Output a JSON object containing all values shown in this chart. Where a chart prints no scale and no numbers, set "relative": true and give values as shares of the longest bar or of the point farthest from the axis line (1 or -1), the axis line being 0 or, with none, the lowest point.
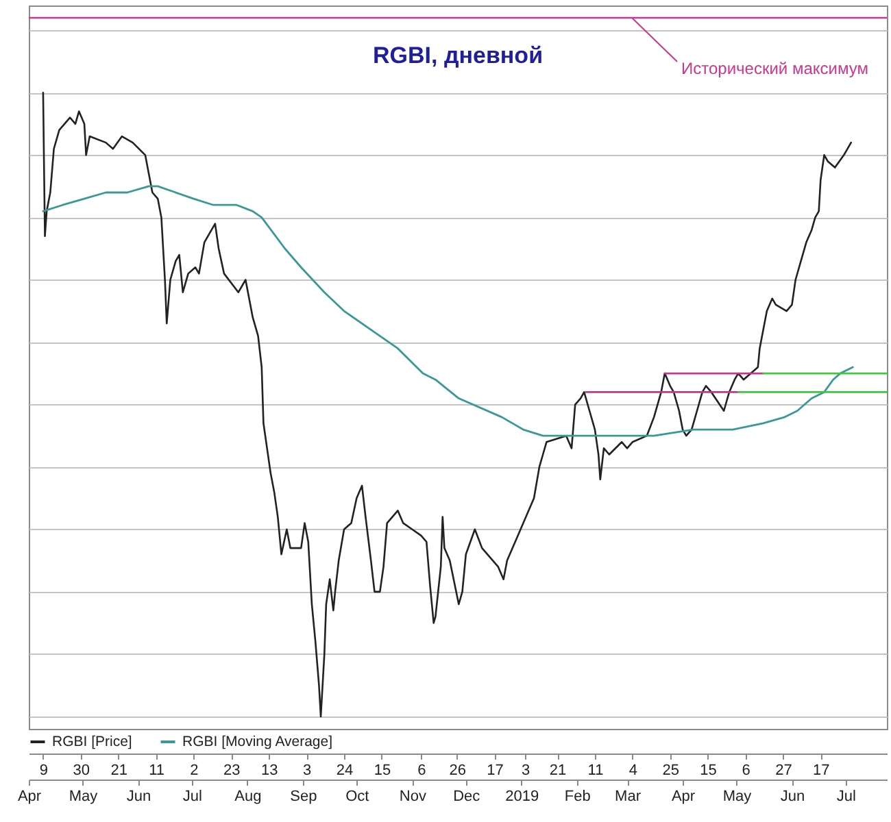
{
  "chart_data": {
    "type": "line",
    "title": "RGBI, дневной",
    "relative": true,
    "xlim": [
      "2018-04-01",
      "2019-07-24"
    ],
    "xticks": [
      {
        "value": "2018-04-09",
        "label": "9"
      },
      {
        "value": "2018-04-30",
        "label": "30"
      },
      {
        "value": "2018-05-21",
        "label": "21"
      },
      {
        "value": "2018-06-11",
        "label": "11"
      },
      {
        "value": "2018-07-02",
        "label": "2"
      },
      {
        "value": "2018-07-23",
        "label": "23"
      },
      {
        "value": "2018-08-13",
        "label": "13"
      },
      {
        "value": "2018-09-03",
        "label": "3"
      },
      {
        "value": "2018-09-24",
        "label": "24"
      },
      {
        "value": "2018-10-15",
        "label": "15"
      },
      {
        "value": "2018-11-06",
        "label": "6"
      },
      {
        "value": "2018-11-26",
        "label": "26"
      },
      {
        "value": "2018-12-17",
        "label": "17"
      },
      {
        "value": "2019-01-03",
        "label": "3"
      },
      {
        "value": "2019-01-21",
        "label": "21"
      },
      {
        "value": "2019-02-11",
        "label": "11"
      },
      {
        "value": "2019-03-04",
        "label": "4"
      },
      {
        "value": "2019-03-25",
        "label": "25"
      },
      {
        "value": "2019-04-15",
        "label": "15"
      },
      {
        "value": "2019-05-06",
        "label": "6"
      },
      {
        "value": "2019-05-27",
        "label": "27"
      },
      {
        "value": "2019-06-17",
        "label": "17"
      }
    ],
    "x2lim": [
      "2018-04-01",
      "2019-07-24"
    ],
    "x2ticks": [
      {
        "value": "2018-04-01",
        "label": "Apr"
      },
      {
        "value": "2018-05-01",
        "label": "May"
      },
      {
        "value": "2018-06-01",
        "label": "Jun"
      },
      {
        "value": "2018-07-01",
        "label": "Jul"
      },
      {
        "value": "2018-08-01",
        "label": "Aug"
      },
      {
        "value": "2018-09-01",
        "label": "Sep"
      },
      {
        "value": "2018-10-01",
        "label": "Oct"
      },
      {
        "value": "2018-11-01",
        "label": "Nov"
      },
      {
        "value": "2018-12-01",
        "label": "Dec"
      },
      {
        "value": "2019-01-01",
        "label": "2019"
      },
      {
        "value": "2019-02-01",
        "label": "Feb"
      },
      {
        "value": "2019-03-01",
        "label": "Mar"
      },
      {
        "value": "2019-04-01",
        "label": "Apr"
      },
      {
        "value": "2019-05-01",
        "label": "May"
      },
      {
        "value": "2019-06-01",
        "label": "Jun"
      },
      {
        "value": "2019-07-01",
        "label": "Jul"
      }
    ],
    "grid": "y",
    "legend": "bottom left",
    "ref_lines": [
      {
        "axis": "y",
        "value": 1.12,
        "label": "Исторический максимум",
        "color": "#c8388c"
      }
    ],
    "series": [
      {
        "name": "RGBI [Price]",
        "color": "#222222",
        "x": [
          "2018-04-09",
          "2018-04-10",
          "2018-04-11",
          "2018-04-13",
          "2018-04-15",
          "2018-04-18",
          "2018-04-24",
          "2018-04-27",
          "2018-04-29",
          "2018-05-02",
          "2018-05-03",
          "2018-05-05",
          "2018-05-14",
          "2018-05-18",
          "2018-05-23",
          "2018-05-29",
          "2018-06-05",
          "2018-06-07",
          "2018-06-09",
          "2018-06-12",
          "2018-06-14",
          "2018-06-16",
          "2018-06-17",
          "2018-06-19",
          "2018-06-22",
          "2018-06-24",
          "2018-06-26",
          "2018-06-29",
          "2018-07-03",
          "2018-07-05",
          "2018-07-08",
          "2018-07-12",
          "2018-07-14",
          "2018-07-16",
          "2018-07-19",
          "2018-07-27",
          "2018-07-31",
          "2018-08-02",
          "2018-08-04",
          "2018-08-07",
          "2018-08-09",
          "2018-08-10",
          "2018-08-12",
          "2018-08-14",
          "2018-08-16",
          "2018-08-18",
          "2018-08-20",
          "2018-08-23",
          "2018-08-25",
          "2018-08-31",
          "2018-09-02",
          "2018-09-04",
          "2018-09-06",
          "2018-09-08",
          "2018-09-10",
          "2018-09-11",
          "2018-09-13",
          "2018-09-14",
          "2018-09-16",
          "2018-09-18",
          "2018-09-19",
          "2018-09-21",
          "2018-09-24",
          "2018-09-28",
          "2018-10-01",
          "2018-10-04",
          "2018-10-06",
          "2018-10-09",
          "2018-10-11",
          "2018-10-14",
          "2018-10-16",
          "2018-10-18",
          "2018-10-24",
          "2018-10-27",
          "2018-11-01",
          "2018-11-06",
          "2018-11-09",
          "2018-11-11",
          "2018-11-13",
          "2018-11-14",
          "2018-11-17",
          "2018-11-18",
          "2018-11-19",
          "2018-11-22",
          "2018-11-27",
          "2018-11-29",
          "2018-12-01",
          "2018-12-06",
          "2018-12-10",
          "2018-12-19",
          "2018-12-22",
          "2018-12-24",
          "2018-12-30",
          "2019-01-02",
          "2019-01-08",
          "2019-01-11",
          "2019-01-13",
          "2019-01-15",
          "2019-01-26",
          "2019-01-29",
          "2019-01-31",
          "2019-02-03",
          "2019-02-05",
          "2019-02-08",
          "2019-02-11",
          "2019-02-13",
          "2019-02-14",
          "2019-02-16",
          "2019-02-19",
          "2019-02-26",
          "2019-03-01",
          "2019-03-04",
          "2019-03-12",
          "2019-03-16",
          "2019-03-20",
          "2019-03-22",
          "2019-03-25",
          "2019-03-27",
          "2019-03-30",
          "2019-04-01",
          "2019-04-03",
          "2019-04-06",
          "2019-04-09",
          "2019-04-12",
          "2019-04-14",
          "2019-04-17",
          "2019-04-24",
          "2019-04-27",
          "2019-04-30",
          "2019-05-02",
          "2019-05-05",
          "2019-05-13",
          "2019-05-14",
          "2019-05-16",
          "2019-05-18",
          "2019-05-21",
          "2019-05-23",
          "2019-05-29",
          "2019-06-01",
          "2019-06-03",
          "2019-06-06",
          "2019-06-09",
          "2019-06-12",
          "2019-06-14",
          "2019-06-16",
          "2019-06-17",
          "2019-06-19",
          "2019-06-21",
          "2019-06-25",
          "2019-06-30",
          "2019-07-04"
        ],
        "values": [
          1,
          0.77,
          0.81,
          0.84,
          0.91,
          0.94,
          0.96,
          0.95,
          0.97,
          0.95,
          0.9,
          0.93,
          0.92,
          0.91,
          0.93,
          0.92,
          0.9,
          0.87,
          0.84,
          0.83,
          0.8,
          0.7,
          0.63,
          0.7,
          0.73,
          0.74,
          0.68,
          0.71,
          0.72,
          0.71,
          0.76,
          0.78,
          0.79,
          0.75,
          0.71,
          0.68,
          0.7,
          0.67,
          0.64,
          0.61,
          0.56,
          0.47,
          0.43,
          0.39,
          0.36,
          0.32,
          0.26,
          0.3,
          0.27,
          0.27,
          0.31,
          0.28,
          0.18,
          0.12,
          0.05,
          0,
          0.1,
          0.18,
          0.22,
          0.17,
          0.2,
          0.25,
          0.3,
          0.31,
          0.35,
          0.37,
          0.32,
          0.25,
          0.2,
          0.2,
          0.24,
          0.31,
          0.33,
          0.31,
          0.3,
          0.29,
          0.28,
          0.21,
          0.15,
          0.16,
          0.24,
          0.32,
          0.27,
          0.25,
          0.18,
          0.2,
          0.26,
          0.3,
          0.27,
          0.24,
          0.22,
          0.25,
          0.29,
          0.31,
          0.35,
          0.4,
          0.42,
          0.44,
          0.45,
          0.43,
          0.5,
          0.51,
          0.52,
          0.49,
          0.46,
          0.42,
          0.38,
          0.43,
          0.42,
          0.44,
          0.43,
          0.44,
          0.45,
          0.48,
          0.52,
          0.55,
          0.53,
          0.52,
          0.49,
          0.46,
          0.45,
          0.46,
          0.49,
          0.52,
          0.53,
          0.52,
          0.49,
          0.52,
          0.54,
          0.55,
          0.54,
          0.56,
          0.59,
          0.62,
          0.65,
          0.67,
          0.66,
          0.65,
          0.66,
          0.7,
          0.73,
          0.76,
          0.78,
          0.8,
          0.81,
          0.86,
          0.9,
          0.89,
          0.88,
          0.9,
          0.92
        ]
      },
      {
        "name": "RGBI [Moving Average]",
        "color": "#3a9896",
        "x": [
          "2018-04-09",
          "2018-04-20",
          "2018-05-02",
          "2018-05-14",
          "2018-05-26",
          "2018-06-07",
          "2018-06-12",
          "2018-07-02",
          "2018-07-13",
          "2018-07-26",
          "2018-08-04",
          "2018-08-09",
          "2018-08-22",
          "2018-08-31",
          "2018-09-13",
          "2018-09-24",
          "2018-10-09",
          "2018-10-24",
          "2018-11-07",
          "2018-11-14",
          "2018-11-27",
          "2018-12-21",
          "2019-01-02",
          "2019-01-13",
          "2019-01-31",
          "2019-02-22",
          "2019-03-16",
          "2019-04-07",
          "2019-04-29",
          "2019-05-16",
          "2019-05-28",
          "2019-06-04",
          "2019-06-12",
          "2019-06-19",
          "2019-06-24",
          "2019-06-28",
          "2019-07-05"
        ],
        "values": [
          0.81,
          0.82,
          0.83,
          0.84,
          0.84,
          0.85,
          0.85,
          0.83,
          0.82,
          0.82,
          0.81,
          0.8,
          0.75,
          0.72,
          0.68,
          0.65,
          0.62,
          0.59,
          0.55,
          0.54,
          0.51,
          0.48,
          0.46,
          0.45,
          0.45,
          0.45,
          0.45,
          0.46,
          0.46,
          0.47,
          0.48,
          0.49,
          0.51,
          0.52,
          0.54,
          0.55,
          0.56
        ]
      },
      {
        "color": "#c0388a",
        "x": [
          "2019-02-06",
          "2019-05-02"
        ],
        "values": [
          0.52,
          0.52
        ]
      },
      {
        "color": "#3cc83c",
        "x": [
          "2019-05-02",
          "2019-07-24"
        ],
        "values": [
          0.52,
          0.52
        ]
      },
      {
        "color": "#c0388a",
        "x": [
          "2019-03-22",
          "2019-05-16"
        ],
        "values": [
          0.55,
          0.55
        ]
      },
      {
        "color": "#3cc83c",
        "x": [
          "2019-05-16",
          "2019-07-24"
        ],
        "values": [
          0.55,
          0.55
        ]
      }
    ]
  }
}
